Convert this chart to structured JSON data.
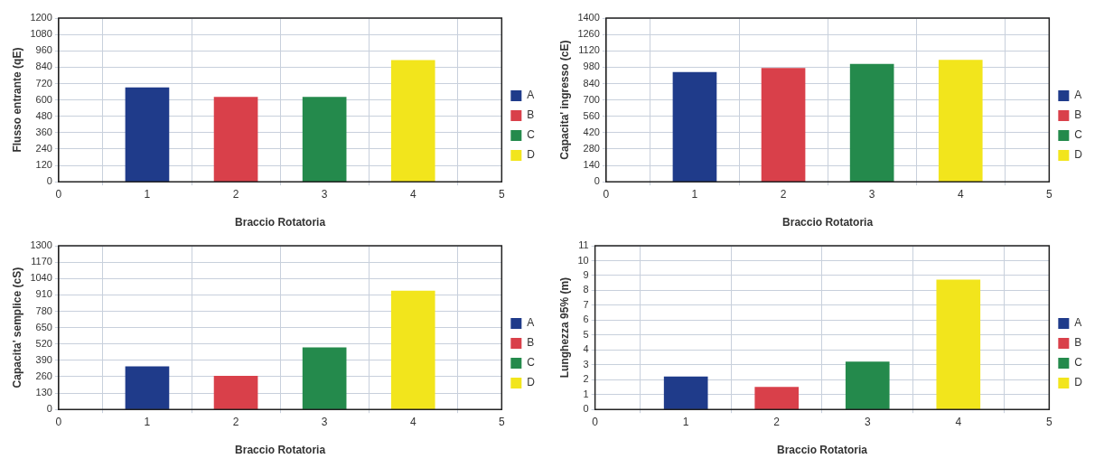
{
  "chart_data": [
    {
      "type": "bar",
      "xlabel": "Braccio Rotatoria",
      "ylabel": "Flusso entrante (qE)",
      "xlim": [
        0,
        5
      ],
      "xticks": [
        0,
        1,
        2,
        3,
        4,
        5
      ],
      "ylim": [
        0,
        1200
      ],
      "yticks": [
        0,
        120,
        240,
        360,
        480,
        600,
        720,
        840,
        960,
        1080,
        1200
      ],
      "grid": true,
      "legend": "right",
      "series": [
        {
          "name": "A",
          "color": "#1f3b8a",
          "x": [
            1
          ],
          "values": [
            690
          ]
        },
        {
          "name": "B",
          "color": "#d9404a",
          "x": [
            2
          ],
          "values": [
            620
          ]
        },
        {
          "name": "C",
          "color": "#248a4c",
          "x": [
            3
          ],
          "values": [
            620
          ]
        },
        {
          "name": "D",
          "color": "#f2e51c",
          "x": [
            4
          ],
          "values": [
            890
          ]
        }
      ]
    },
    {
      "type": "bar",
      "xlabel": "Braccio Rotatoria",
      "ylabel": "Capacita' ingresso (cE)",
      "xlim": [
        0,
        5
      ],
      "xticks": [
        0,
        1,
        2,
        3,
        4,
        5
      ],
      "ylim": [
        0,
        1400
      ],
      "yticks": [
        0,
        140,
        280,
        420,
        560,
        700,
        840,
        980,
        1120,
        1260,
        1400
      ],
      "grid": true,
      "legend": "right",
      "series": [
        {
          "name": "A",
          "color": "#1f3b8a",
          "x": [
            1
          ],
          "values": [
            935
          ]
        },
        {
          "name": "B",
          "color": "#d9404a",
          "x": [
            2
          ],
          "values": [
            970
          ]
        },
        {
          "name": "C",
          "color": "#248a4c",
          "x": [
            3
          ],
          "values": [
            1005
          ]
        },
        {
          "name": "D",
          "color": "#f2e51c",
          "x": [
            4
          ],
          "values": [
            1040
          ]
        }
      ]
    },
    {
      "type": "bar",
      "xlabel": "Braccio Rotatoria",
      "ylabel": "Capacita' semplice (cS)",
      "xlim": [
        0,
        5
      ],
      "xticks": [
        0,
        1,
        2,
        3,
        4,
        5
      ],
      "ylim": [
        0,
        1300
      ],
      "yticks": [
        0,
        130,
        260,
        390,
        520,
        650,
        780,
        910,
        1040,
        1170,
        1300
      ],
      "grid": true,
      "legend": "right",
      "series": [
        {
          "name": "A",
          "color": "#1f3b8a",
          "x": [
            1
          ],
          "values": [
            340
          ]
        },
        {
          "name": "B",
          "color": "#d9404a",
          "x": [
            2
          ],
          "values": [
            265
          ]
        },
        {
          "name": "C",
          "color": "#248a4c",
          "x": [
            3
          ],
          "values": [
            490
          ]
        },
        {
          "name": "D",
          "color": "#f2e51c",
          "x": [
            4
          ],
          "values": [
            940
          ]
        }
      ]
    },
    {
      "type": "bar",
      "xlabel": "Braccio Rotatoria",
      "ylabel": "Lunghezza 95% (m)",
      "xlim": [
        0,
        5
      ],
      "xticks": [
        0,
        1,
        2,
        3,
        4,
        5
      ],
      "ylim": [
        0,
        11
      ],
      "yticks": [
        0,
        1,
        2,
        3,
        4,
        5,
        6,
        7,
        8,
        9,
        10,
        11
      ],
      "grid": true,
      "legend": "right",
      "series": [
        {
          "name": "A",
          "color": "#1f3b8a",
          "x": [
            1
          ],
          "values": [
            2.2
          ]
        },
        {
          "name": "B",
          "color": "#d9404a",
          "x": [
            2
          ],
          "values": [
            1.5
          ]
        },
        {
          "name": "C",
          "color": "#248a4c",
          "x": [
            3
          ],
          "values": [
            3.2
          ]
        },
        {
          "name": "D",
          "color": "#f2e51c",
          "x": [
            4
          ],
          "values": [
            8.7
          ]
        }
      ]
    }
  ]
}
